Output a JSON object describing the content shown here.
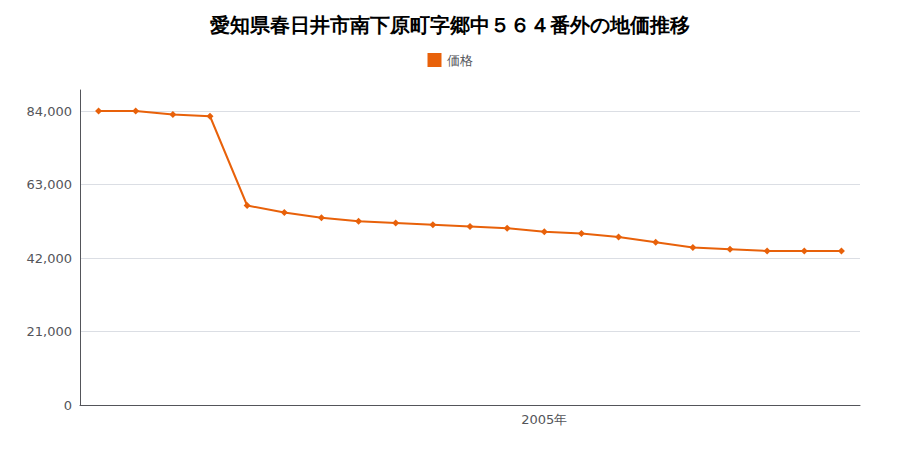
{
  "chart_data": {
    "type": "line",
    "title": "愛知県春日井市南下原町字郷中５６４番外の地価推移",
    "x": [
      1993,
      1994,
      1995,
      1996,
      1997,
      1998,
      1999,
      2000,
      2001,
      2002,
      2003,
      2004,
      2005,
      2006,
      2007,
      2008,
      2009,
      2010,
      2011,
      2012,
      2013
    ],
    "series": [
      {
        "name": "価格",
        "color": "#e8610a",
        "marker": "diamond",
        "values": [
          84000,
          84000,
          83000,
          82500,
          57000,
          55000,
          53500,
          52500,
          52000,
          51500,
          51000,
          50500,
          49500,
          49000,
          48000,
          46500,
          45000,
          44500,
          44000,
          44000,
          44000
        ]
      }
    ],
    "xlim": [
      1992.5,
      2013.5
    ],
    "xticks": [
      {
        "value": 2005,
        "label": "2005年"
      }
    ],
    "ylim": [
      0,
      90000
    ],
    "yticks": [
      0,
      {
        "value": 21000,
        "label": "21,000"
      },
      {
        "value": 42000,
        "label": "42,000"
      },
      {
        "value": 63000,
        "label": "63,000"
      },
      {
        "value": 84000,
        "label": "84,000"
      }
    ],
    "grid": true,
    "legend": "top"
  }
}
